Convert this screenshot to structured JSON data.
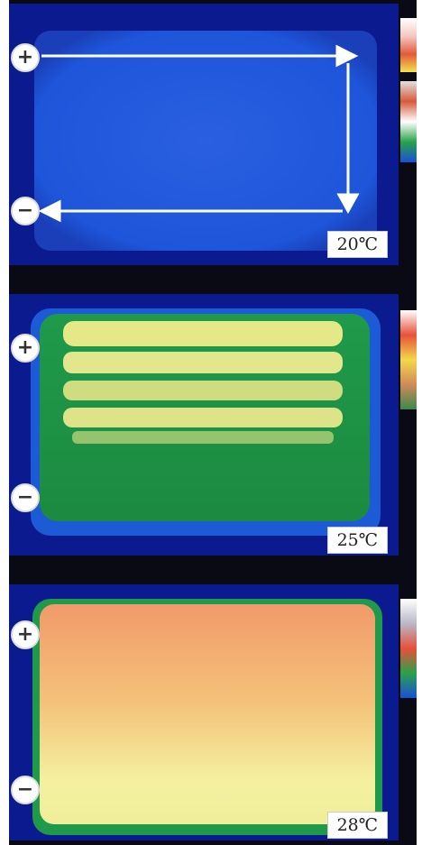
{
  "panels": [
    {
      "temperature_label": "20℃",
      "plus_sign": "+",
      "minus_sign": "−"
    },
    {
      "temperature_label": "25℃",
      "plus_sign": "+",
      "minus_sign": "−"
    },
    {
      "temperature_label": "28℃",
      "plus_sign": "+",
      "minus_sign": "−"
    }
  ],
  "colors": {
    "cold": "#1a4fd6",
    "warm": "#1fa24a",
    "hot_yellow": "#f3f09a",
    "hot_orange": "#f4a070",
    "background": "#0b1a8e"
  },
  "icons": [
    "plus-terminal-icon",
    "minus-terminal-icon",
    "current-path-arrow-icon"
  ]
}
